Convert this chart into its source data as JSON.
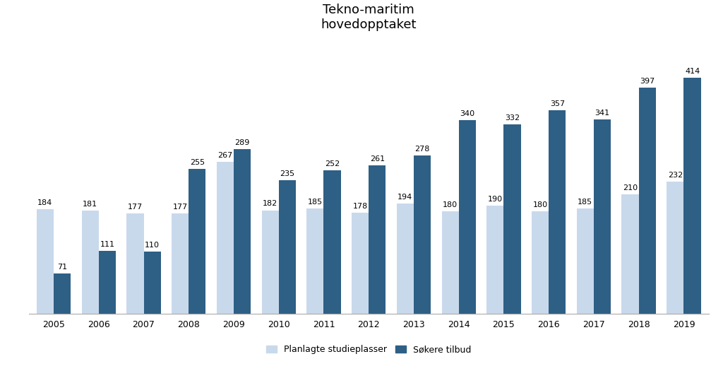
{
  "title": "Tekno-maritim\nhovedopptaket",
  "years": [
    2005,
    2006,
    2007,
    2008,
    2009,
    2010,
    2011,
    2012,
    2013,
    2014,
    2015,
    2016,
    2017,
    2018,
    2019
  ],
  "planlagte": [
    184,
    181,
    177,
    177,
    267,
    182,
    185,
    178,
    194,
    180,
    190,
    180,
    185,
    210,
    232
  ],
  "sokere": [
    71,
    111,
    110,
    255,
    289,
    235,
    252,
    261,
    278,
    340,
    332,
    357,
    341,
    397,
    414
  ],
  "color_planlagte": "#c9d9ec",
  "color_sokere": "#2e5f85",
  "legend_planlagte": "Planlagte studieplasser",
  "legend_sokere": "Søkere tilbud",
  "background_color": "#ffffff",
  "bar_width": 0.38,
  "ylim": [
    0,
    470
  ],
  "label_fontsize": 8.0,
  "title_fontsize": 13,
  "tick_fontsize": 9,
  "legend_fontsize": 9
}
